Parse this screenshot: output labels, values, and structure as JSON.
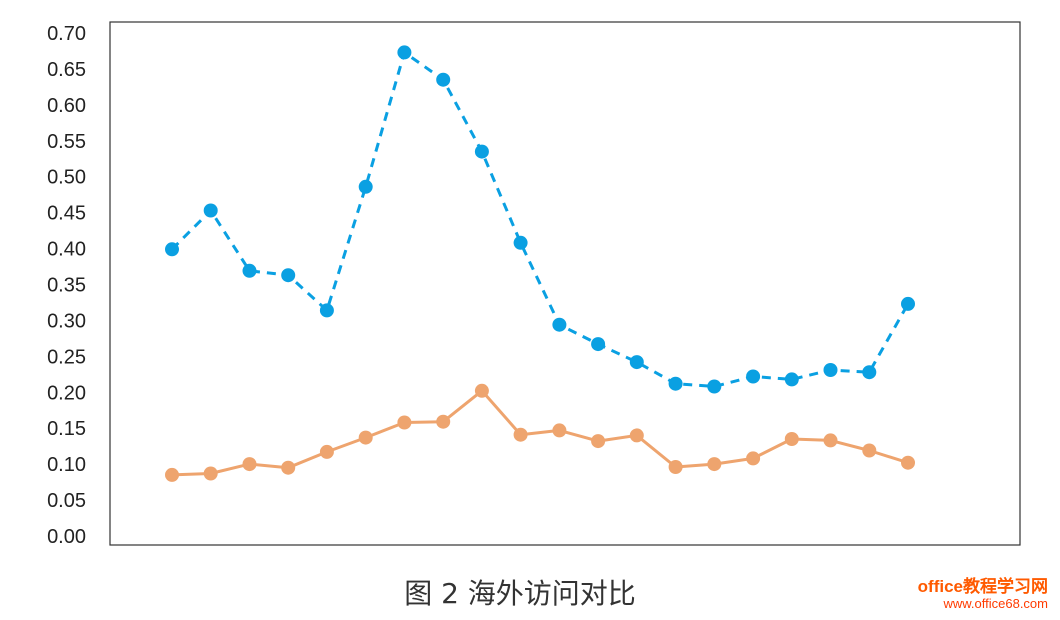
{
  "caption": "图 2  海外访问对比",
  "watermark": {
    "brand": "office教程学习网",
    "url": "www.office68.com"
  },
  "colors": {
    "series_blue": "#0aa0e2",
    "series_orange": "#eea46e",
    "frame": "#333333"
  },
  "chart_data": {
    "type": "line",
    "title": "",
    "xlabel": "",
    "ylabel": "",
    "ylim": [
      0,
      0.7
    ],
    "yticks": [
      "0.00",
      "0.05",
      "0.10",
      "0.15",
      "0.20",
      "0.25",
      "0.30",
      "0.35",
      "0.40",
      "0.45",
      "0.50",
      "0.55",
      "0.60",
      "0.65",
      "0.70"
    ],
    "x": [
      1,
      2,
      3,
      4,
      5,
      6,
      7,
      8,
      9,
      10,
      11,
      12,
      13,
      14,
      15,
      16,
      17,
      18,
      19,
      20
    ],
    "grid": false,
    "legend": "none",
    "series": [
      {
        "style": "dashed",
        "color": "#0aa0e2",
        "values": [
          0.399,
          0.453,
          0.369,
          0.363,
          0.314,
          0.486,
          0.673,
          0.635,
          0.535,
          0.408,
          0.294,
          0.267,
          0.242,
          0.212,
          0.208,
          0.222,
          0.218,
          0.231,
          0.228,
          0.323
        ]
      },
      {
        "style": "solid",
        "color": "#eea46e",
        "values": [
          0.085,
          0.087,
          0.1,
          0.095,
          0.117,
          0.137,
          0.158,
          0.159,
          0.202,
          0.141,
          0.147,
          0.132,
          0.14,
          0.096,
          0.1,
          0.108,
          0.135,
          0.133,
          0.119,
          0.102
        ]
      }
    ]
  }
}
